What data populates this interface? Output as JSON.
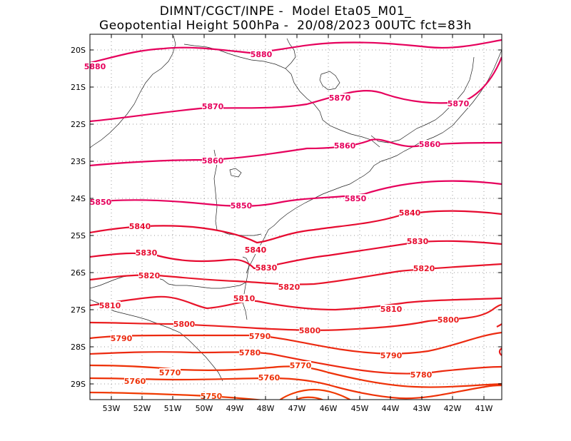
{
  "title": {
    "line1": "DIMNT/CGCT/INPE -  Model Eta05_M01_",
    "line2": "Geopotential Height 500hPa -  20/08/2023 00UTC fct=83h"
  },
  "axes": {
    "lat_labels": [
      "20S",
      "21S",
      "22S",
      "23S",
      "24S",
      "25S",
      "26S",
      "27S",
      "28S",
      "29S"
    ],
    "lon_labels": [
      "53W",
      "52W",
      "51W",
      "50W",
      "49W",
      "48W",
      "47W",
      "46W",
      "45W",
      "44W",
      "43W",
      "42W",
      "41W"
    ]
  },
  "contour_labels": [
    {
      "text": "5880",
      "color": "#e6005c"
    },
    {
      "text": "5880",
      "color": "#e6005c"
    },
    {
      "text": "5870",
      "color": "#e6005c"
    },
    {
      "text": "5870",
      "color": "#e6005c"
    },
    {
      "text": "5870",
      "color": "#e6005c"
    },
    {
      "text": "5860",
      "color": "#e6005c"
    },
    {
      "text": "5860",
      "color": "#e6005c"
    },
    {
      "text": "5860",
      "color": "#e6005c"
    },
    {
      "text": "5850",
      "color": "#e6005c"
    },
    {
      "text": "5850",
      "color": "#e6005c"
    },
    {
      "text": "5850",
      "color": "#e6005c"
    },
    {
      "text": "5840",
      "color": "#e60a30"
    },
    {
      "text": "5840",
      "color": "#e60a30"
    },
    {
      "text": "5840",
      "color": "#e60a30"
    },
    {
      "text": "5830",
      "color": "#e60a30"
    },
    {
      "text": "5830",
      "color": "#e60a30"
    },
    {
      "text": "5830",
      "color": "#e60a30"
    },
    {
      "text": "5820",
      "color": "#e8142a"
    },
    {
      "text": "5820",
      "color": "#e8142a"
    },
    {
      "text": "5820",
      "color": "#e8142a"
    },
    {
      "text": "5810",
      "color": "#e8142a"
    },
    {
      "text": "5810",
      "color": "#e8142a"
    },
    {
      "text": "5810",
      "color": "#e8142a"
    },
    {
      "text": "5800",
      "color": "#ea1e1e"
    },
    {
      "text": "5800",
      "color": "#ea1e1e"
    },
    {
      "text": "5800",
      "color": "#ea1e1e"
    },
    {
      "text": "5790",
      "color": "#ec2a10"
    },
    {
      "text": "5790",
      "color": "#ec2a10"
    },
    {
      "text": "5790",
      "color": "#ec2a10"
    },
    {
      "text": "5780",
      "color": "#ec2a10"
    },
    {
      "text": "5780",
      "color": "#ec2a10"
    },
    {
      "text": "5770",
      "color": "#ee3208"
    },
    {
      "text": "5770",
      "color": "#ee3208"
    },
    {
      "text": "5760",
      "color": "#ee3208"
    },
    {
      "text": "5760",
      "color": "#ee3208"
    },
    {
      "text": "5750",
      "color": "#f03a00"
    }
  ]
}
